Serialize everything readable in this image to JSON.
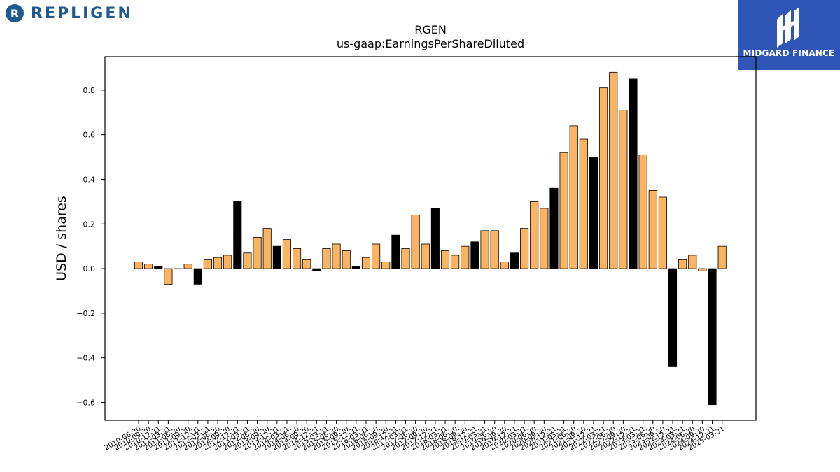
{
  "brand_left": {
    "name": "REPLIGEN",
    "icon": "repligen-logo-icon"
  },
  "brand_right": {
    "name": "MIDGARD FINANCE",
    "icon": "midgard-logo-icon"
  },
  "chart_data": {
    "type": "bar",
    "title": "RGEN",
    "subtitle": "us-gaap:EarningsPerShareDiluted",
    "xlabel": "",
    "ylabel": "USD / shares",
    "ylim": [
      -0.68,
      0.95
    ],
    "yticks": [
      -0.6,
      -0.4,
      -0.2,
      0.0,
      0.2,
      0.4,
      0.6,
      0.8
    ],
    "ytick_labels": [
      "−0.6",
      "−0.4",
      "−0.2",
      "0.0",
      "0.2",
      "0.4",
      "0.6",
      "0.8"
    ],
    "grid": false,
    "legend": "none",
    "colors": {
      "quarterly": "#fdb462",
      "annual": "#000000",
      "edge": "#000000"
    },
    "categories": [
      "2010-06-30",
      "2010-09-30",
      "2010-12-31",
      "2011-03-31",
      "2011-06-30",
      "2011-09-30",
      "2011-12-31",
      "2012-03-31",
      "2012-06-30",
      "2012-09-30",
      "2012-12-31",
      "2013-03-31",
      "2013-06-30",
      "2013-09-30",
      "2013-12-31",
      "2014-03-31",
      "2014-06-30",
      "2014-09-30",
      "2014-12-31",
      "2015-03-31",
      "2015-06-30",
      "2015-09-30",
      "2015-12-31",
      "2016-03-31",
      "2016-06-30",
      "2016-09-30",
      "2016-12-31",
      "2017-03-31",
      "2017-06-30",
      "2017-09-30",
      "2017-12-31",
      "2018-03-31",
      "2018-06-30",
      "2018-09-30",
      "2018-12-31",
      "2019-03-31",
      "2019-06-30",
      "2019-09-30",
      "2019-12-31",
      "2020-03-31",
      "2020-06-30",
      "2020-09-30",
      "2020-12-31",
      "2021-03-31",
      "2021-06-30",
      "2021-09-30",
      "2021-12-31",
      "2022-03-31",
      "2022-06-30",
      "2022-09-30",
      "2022-12-31",
      "2023-03-31",
      "2023-06-30",
      "2023-09-30",
      "2023-12-31",
      "2024-03-31",
      "2024-06-30",
      "2024-09-30",
      "2024-12-31",
      "2025-03-31"
    ],
    "values": [
      0.03,
      0.02,
      0.01,
      -0.07,
      0.0,
      0.02,
      -0.07,
      0.04,
      0.05,
      0.06,
      0.3,
      0.07,
      0.14,
      0.18,
      0.1,
      0.13,
      0.09,
      0.04,
      -0.01,
      0.09,
      0.11,
      0.08,
      0.01,
      0.05,
      0.11,
      0.03,
      0.15,
      0.09,
      0.24,
      0.11,
      0.27,
      0.08,
      0.06,
      0.1,
      0.12,
      0.17,
      0.17,
      0.03,
      0.07,
      0.18,
      0.3,
      0.27,
      0.36,
      0.52,
      0.64,
      0.58,
      0.5,
      0.81,
      0.88,
      0.71,
      0.85,
      0.51,
      0.35,
      0.32,
      -0.44,
      0.04,
      0.06,
      -0.01,
      -0.61,
      0.1
    ],
    "annual": [
      false,
      false,
      true,
      false,
      true,
      false,
      true,
      false,
      false,
      false,
      true,
      false,
      false,
      false,
      true,
      false,
      false,
      false,
      true,
      false,
      false,
      false,
      true,
      false,
      false,
      false,
      true,
      false,
      false,
      false,
      true,
      false,
      false,
      false,
      true,
      false,
      false,
      false,
      true,
      false,
      false,
      false,
      true,
      false,
      false,
      false,
      true,
      false,
      false,
      false,
      true,
      false,
      false,
      false,
      true,
      false,
      false,
      false,
      true,
      false
    ]
  }
}
